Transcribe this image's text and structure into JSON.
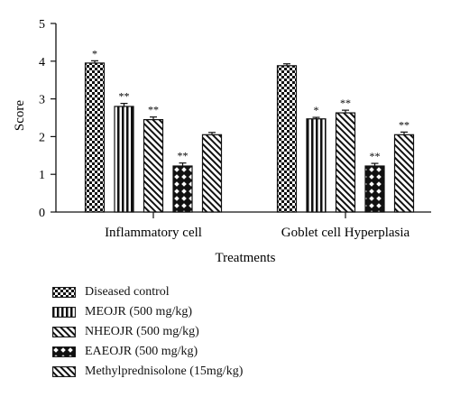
{
  "chart_data": {
    "type": "bar",
    "ylabel": "Score",
    "xlabel": "Treatments",
    "ylim": [
      0,
      5
    ],
    "yticks": [
      0,
      1,
      2,
      3,
      4,
      5
    ],
    "categories": [
      "Inflammatory cell",
      "Goblet cell Hyperplasia"
    ],
    "series": [
      {
        "name": "Diseased control",
        "pattern": "checker",
        "values": [
          3.95,
          3.88
        ],
        "errors": [
          0.06,
          0.05
        ],
        "annotations": [
          "*",
          ""
        ]
      },
      {
        "name": "MEOJR (500 mg/kg)",
        "pattern": "vlines",
        "values": [
          2.8,
          2.47
        ],
        "errors": [
          0.08,
          0.04
        ],
        "annotations": [
          "**",
          "*"
        ]
      },
      {
        "name": "NHEOJR (500 mg/kg)",
        "pattern": "diag",
        "values": [
          2.45,
          2.63
        ],
        "errors": [
          0.07,
          0.07
        ],
        "annotations": [
          "**",
          "**"
        ]
      },
      {
        "name": "EAEOJR (500 mg/kg)",
        "pattern": "diamond",
        "values": [
          1.22,
          1.22
        ],
        "errors": [
          0.08,
          0.07
        ],
        "annotations": [
          "**",
          "**"
        ]
      },
      {
        "name": "Methylprednisolone (15mg/kg)",
        "pattern": "diag",
        "values": [
          2.05,
          2.05
        ],
        "errors": [
          0.06,
          0.07
        ],
        "annotations": [
          "",
          "**"
        ]
      }
    ]
  }
}
